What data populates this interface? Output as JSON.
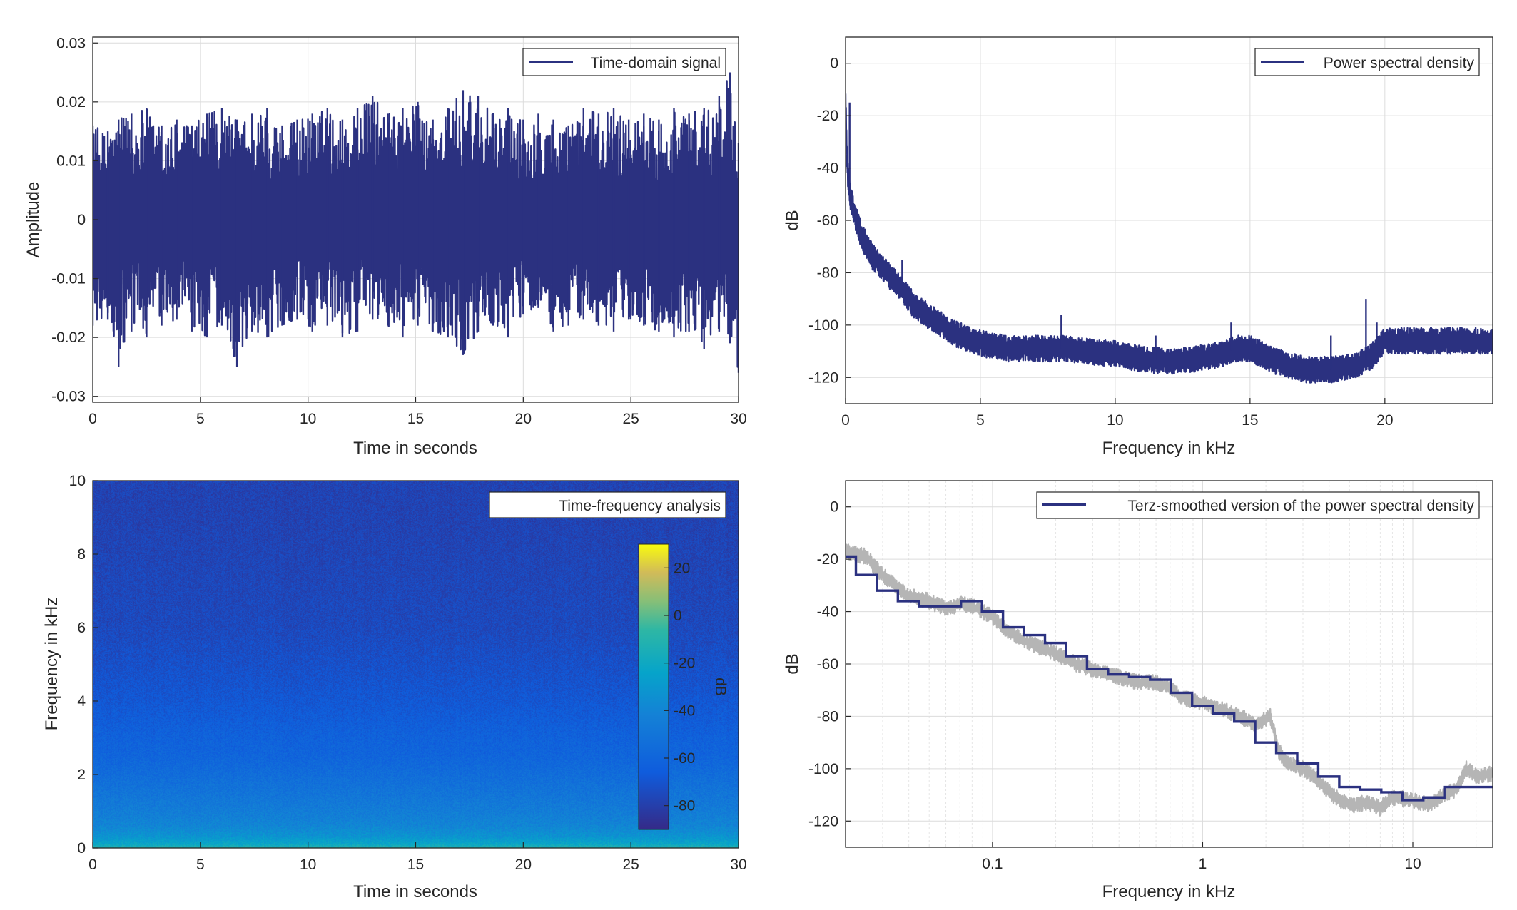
{
  "chart_data": [
    {
      "type": "line",
      "xlabel": "Time in seconds",
      "ylabel": "Amplitude",
      "xlim": [
        0,
        30
      ],
      "ylim": [
        -0.031,
        0.031
      ],
      "xticks": [
        0,
        5,
        10,
        15,
        20,
        25,
        30
      ],
      "xtick_labels": [
        "0",
        "5",
        "10",
        "15",
        "20",
        "25",
        "30"
      ],
      "yticks": [
        -0.03,
        -0.02,
        -0.01,
        0,
        0.01,
        0.02,
        0.03
      ],
      "ytick_labels": [
        "-0.03",
        "-0.02",
        "-0.01",
        "0",
        "0.01",
        "0.02",
        "0.03"
      ],
      "grid": true,
      "legend_position": "top-right",
      "series": [
        {
          "name": "Time-domain signal",
          "color": "#2b3180",
          "peaks_t": [
            0.0,
            0.7,
            1.2,
            1.8,
            2.5,
            3.2,
            3.9,
            4.6,
            5.3,
            6.0,
            6.7,
            7.4,
            8.1,
            8.8,
            9.5,
            10.2,
            10.9,
            11.6,
            12.3,
            13.0,
            13.7,
            14.4,
            15.1,
            15.8,
            16.5,
            17.2,
            17.9,
            18.6,
            19.3,
            20.0,
            20.7,
            21.4,
            22.1,
            22.8,
            23.5,
            24.2,
            24.9,
            25.6,
            26.3,
            27.0,
            27.7,
            28.4,
            29.1,
            29.6,
            30.0
          ],
          "upper_envelope": [
            0.016,
            0.015,
            0.017,
            0.018,
            0.019,
            0.016,
            0.017,
            0.016,
            0.018,
            0.019,
            0.017,
            0.018,
            0.019,
            0.016,
            0.017,
            0.018,
            0.019,
            0.017,
            0.019,
            0.021,
            0.018,
            0.019,
            0.02,
            0.017,
            0.019,
            0.022,
            0.021,
            0.018,
            0.019,
            0.017,
            0.018,
            0.017,
            0.016,
            0.019,
            0.018,
            0.019,
            0.017,
            0.018,
            0.017,
            0.019,
            0.018,
            0.019,
            0.021,
            0.025,
            0.013
          ],
          "lower_envelope": [
            -0.018,
            -0.017,
            -0.025,
            -0.019,
            -0.02,
            -0.018,
            -0.017,
            -0.019,
            -0.02,
            -0.018,
            -0.025,
            -0.019,
            -0.02,
            -0.018,
            -0.017,
            -0.019,
            -0.018,
            -0.02,
            -0.019,
            -0.017,
            -0.018,
            -0.02,
            -0.018,
            -0.019,
            -0.02,
            -0.023,
            -0.019,
            -0.018,
            -0.02,
            -0.016,
            -0.015,
            -0.019,
            -0.018,
            -0.017,
            -0.018,
            -0.019,
            -0.017,
            -0.018,
            -0.019,
            -0.02,
            -0.019,
            -0.022,
            -0.019,
            -0.021,
            -0.026
          ]
        }
      ]
    },
    {
      "type": "line",
      "xlabel": "Frequency in kHz",
      "ylabel": "dB",
      "xlim": [
        0,
        24
      ],
      "ylim": [
        -130,
        10
      ],
      "xticks": [
        0,
        5,
        10,
        15,
        20
      ],
      "xtick_labels": [
        "0",
        "5",
        "10",
        "15",
        "20"
      ],
      "yticks": [
        -120,
        -100,
        -80,
        -60,
        -40,
        -20,
        0
      ],
      "ytick_labels": [
        "-120",
        "-100",
        "-80",
        "-60",
        "-40",
        "-20",
        "0"
      ],
      "grid": true,
      "legend_position": "top-right",
      "series": [
        {
          "name": "Power spectral density",
          "color": "#2b3180",
          "x": [
            0.0,
            0.05,
            0.1,
            0.2,
            0.4,
            0.6,
            1.0,
            1.5,
            2.0,
            2.5,
            3.0,
            4.0,
            5.0,
            6.0,
            7.0,
            8.0,
            9.0,
            10.0,
            11.0,
            12.0,
            13.0,
            14.0,
            14.5,
            15.0,
            16.0,
            17.0,
            18.0,
            19.0,
            19.5,
            20.0,
            21.0,
            22.0,
            23.0,
            24.0
          ],
          "y": [
            -15,
            -35,
            -45,
            -52,
            -60,
            -66,
            -74,
            -80,
            -85,
            -92,
            -96,
            -103,
            -107,
            -109,
            -109,
            -109,
            -110,
            -111,
            -113,
            -114,
            -113,
            -111,
            -109,
            -109,
            -114,
            -117,
            -117,
            -115,
            -112,
            -106,
            -106,
            -106,
            -106,
            -106
          ],
          "spread_db": 5,
          "spikes": [
            [
              0.15,
              -15
            ],
            [
              2.1,
              -75
            ],
            [
              8.0,
              -96
            ],
            [
              11.5,
              -104
            ],
            [
              14.3,
              -99
            ],
            [
              18.0,
              -104
            ],
            [
              19.3,
              -90
            ],
            [
              19.7,
              -99
            ]
          ]
        }
      ]
    },
    {
      "type": "heatmap",
      "xlabel": "Time in seconds",
      "ylabel": "Frequency in kHz",
      "xlim": [
        0,
        30
      ],
      "ylim": [
        0,
        10
      ],
      "xticks": [
        0,
        5,
        10,
        15,
        20,
        25,
        30
      ],
      "xtick_labels": [
        "0",
        "5",
        "10",
        "15",
        "20",
        "25",
        "30"
      ],
      "yticks": [
        0,
        2,
        4,
        6,
        8,
        10
      ],
      "ytick_labels": [
        "0",
        "2",
        "4",
        "6",
        "8",
        "10"
      ],
      "legend_position": "top-right",
      "legend_label": "Time-frequency analysis",
      "colorbar": {
        "label": "dB",
        "range": [
          -90,
          30
        ],
        "ticks": [
          -80,
          -60,
          -40,
          -20,
          0,
          20
        ],
        "tick_labels": [
          "-80",
          "-60",
          "-40",
          "-20",
          "0",
          "20"
        ],
        "colormap": "parula"
      },
      "freq_profile_khz": [
        0,
        0.1,
        0.3,
        0.6,
        1.0,
        1.5,
        2.0,
        2.5,
        3.0,
        3.5,
        4.0,
        5.0,
        6.0,
        7.0,
        8.0,
        9.0,
        10.0
      ],
      "freq_profile_db": [
        -10,
        -22,
        -32,
        -40,
        -45,
        -50,
        -55,
        -60,
        -62,
        -65,
        -68,
        -72,
        -75,
        -76,
        -77,
        -78,
        -78
      ]
    },
    {
      "type": "line",
      "xlabel": "Frequency in kHz",
      "ylabel": "dB",
      "xscale": "log",
      "xlim": [
        0.02,
        24
      ],
      "ylim": [
        -130,
        10
      ],
      "xticks": [
        0.1,
        1,
        10
      ],
      "xtick_labels": [
        "0.1",
        "1",
        "10"
      ],
      "yticks": [
        -120,
        -100,
        -80,
        -60,
        -40,
        -20,
        0
      ],
      "ytick_labels": [
        "-120",
        "-100",
        "-80",
        "-60",
        "-40",
        "-20",
        "0"
      ],
      "grid": true,
      "legend_position": "top-right",
      "series": [
        {
          "name": "Terz-smoothed version of the power spectral density",
          "color": "#2b3180",
          "band_edges_khz": [
            0.02,
            0.0224,
            0.02818,
            0.03548,
            0.04467,
            0.05623,
            0.07079,
            0.08913,
            0.1122,
            0.1413,
            0.1778,
            0.2239,
            0.2818,
            0.3548,
            0.4467,
            0.5623,
            0.7079,
            0.8913,
            1.122,
            1.413,
            1.778,
            2.239,
            2.818,
            3.548,
            4.467,
            5.623,
            7.079,
            8.913,
            11.22,
            14.13,
            24
          ],
          "band_levels_db": [
            -19,
            -26,
            -32,
            -36,
            -38,
            -38,
            -36,
            -40,
            -46,
            -49,
            -52,
            -57,
            -62,
            -64,
            -65,
            -66,
            -71,
            -76,
            -79,
            -82,
            -90,
            -94,
            -98,
            -103,
            -107,
            -108,
            -109,
            -112,
            -111,
            -107
          ]
        },
        {
          "color": "#b5b5b5",
          "x": [
            0.02,
            0.025,
            0.03,
            0.04,
            0.05,
            0.06,
            0.07,
            0.08,
            0.1,
            0.12,
            0.15,
            0.2,
            0.25,
            0.3,
            0.4,
            0.5,
            0.6,
            0.7,
            0.8,
            1.0,
            1.2,
            1.5,
            1.8,
            2.1,
            2.3,
            2.5,
            3.0,
            3.5,
            4.0,
            4.5,
            5.0,
            6.0,
            7.0,
            8.0,
            10.0,
            12.0,
            14.0,
            16.0,
            18.0,
            20.0,
            24.0
          ],
          "y": [
            -17,
            -19,
            -26,
            -34,
            -36,
            -39,
            -37,
            -38,
            -42,
            -48,
            -52,
            -56,
            -60,
            -62,
            -65,
            -67,
            -67,
            -69,
            -73,
            -75,
            -77,
            -80,
            -83,
            -80,
            -93,
            -98,
            -100,
            -104,
            -109,
            -112,
            -114,
            -113,
            -115,
            -111,
            -112,
            -114,
            -110,
            -108,
            -100,
            -103,
            -102
          ],
          "spread_db": 3
        }
      ]
    }
  ]
}
